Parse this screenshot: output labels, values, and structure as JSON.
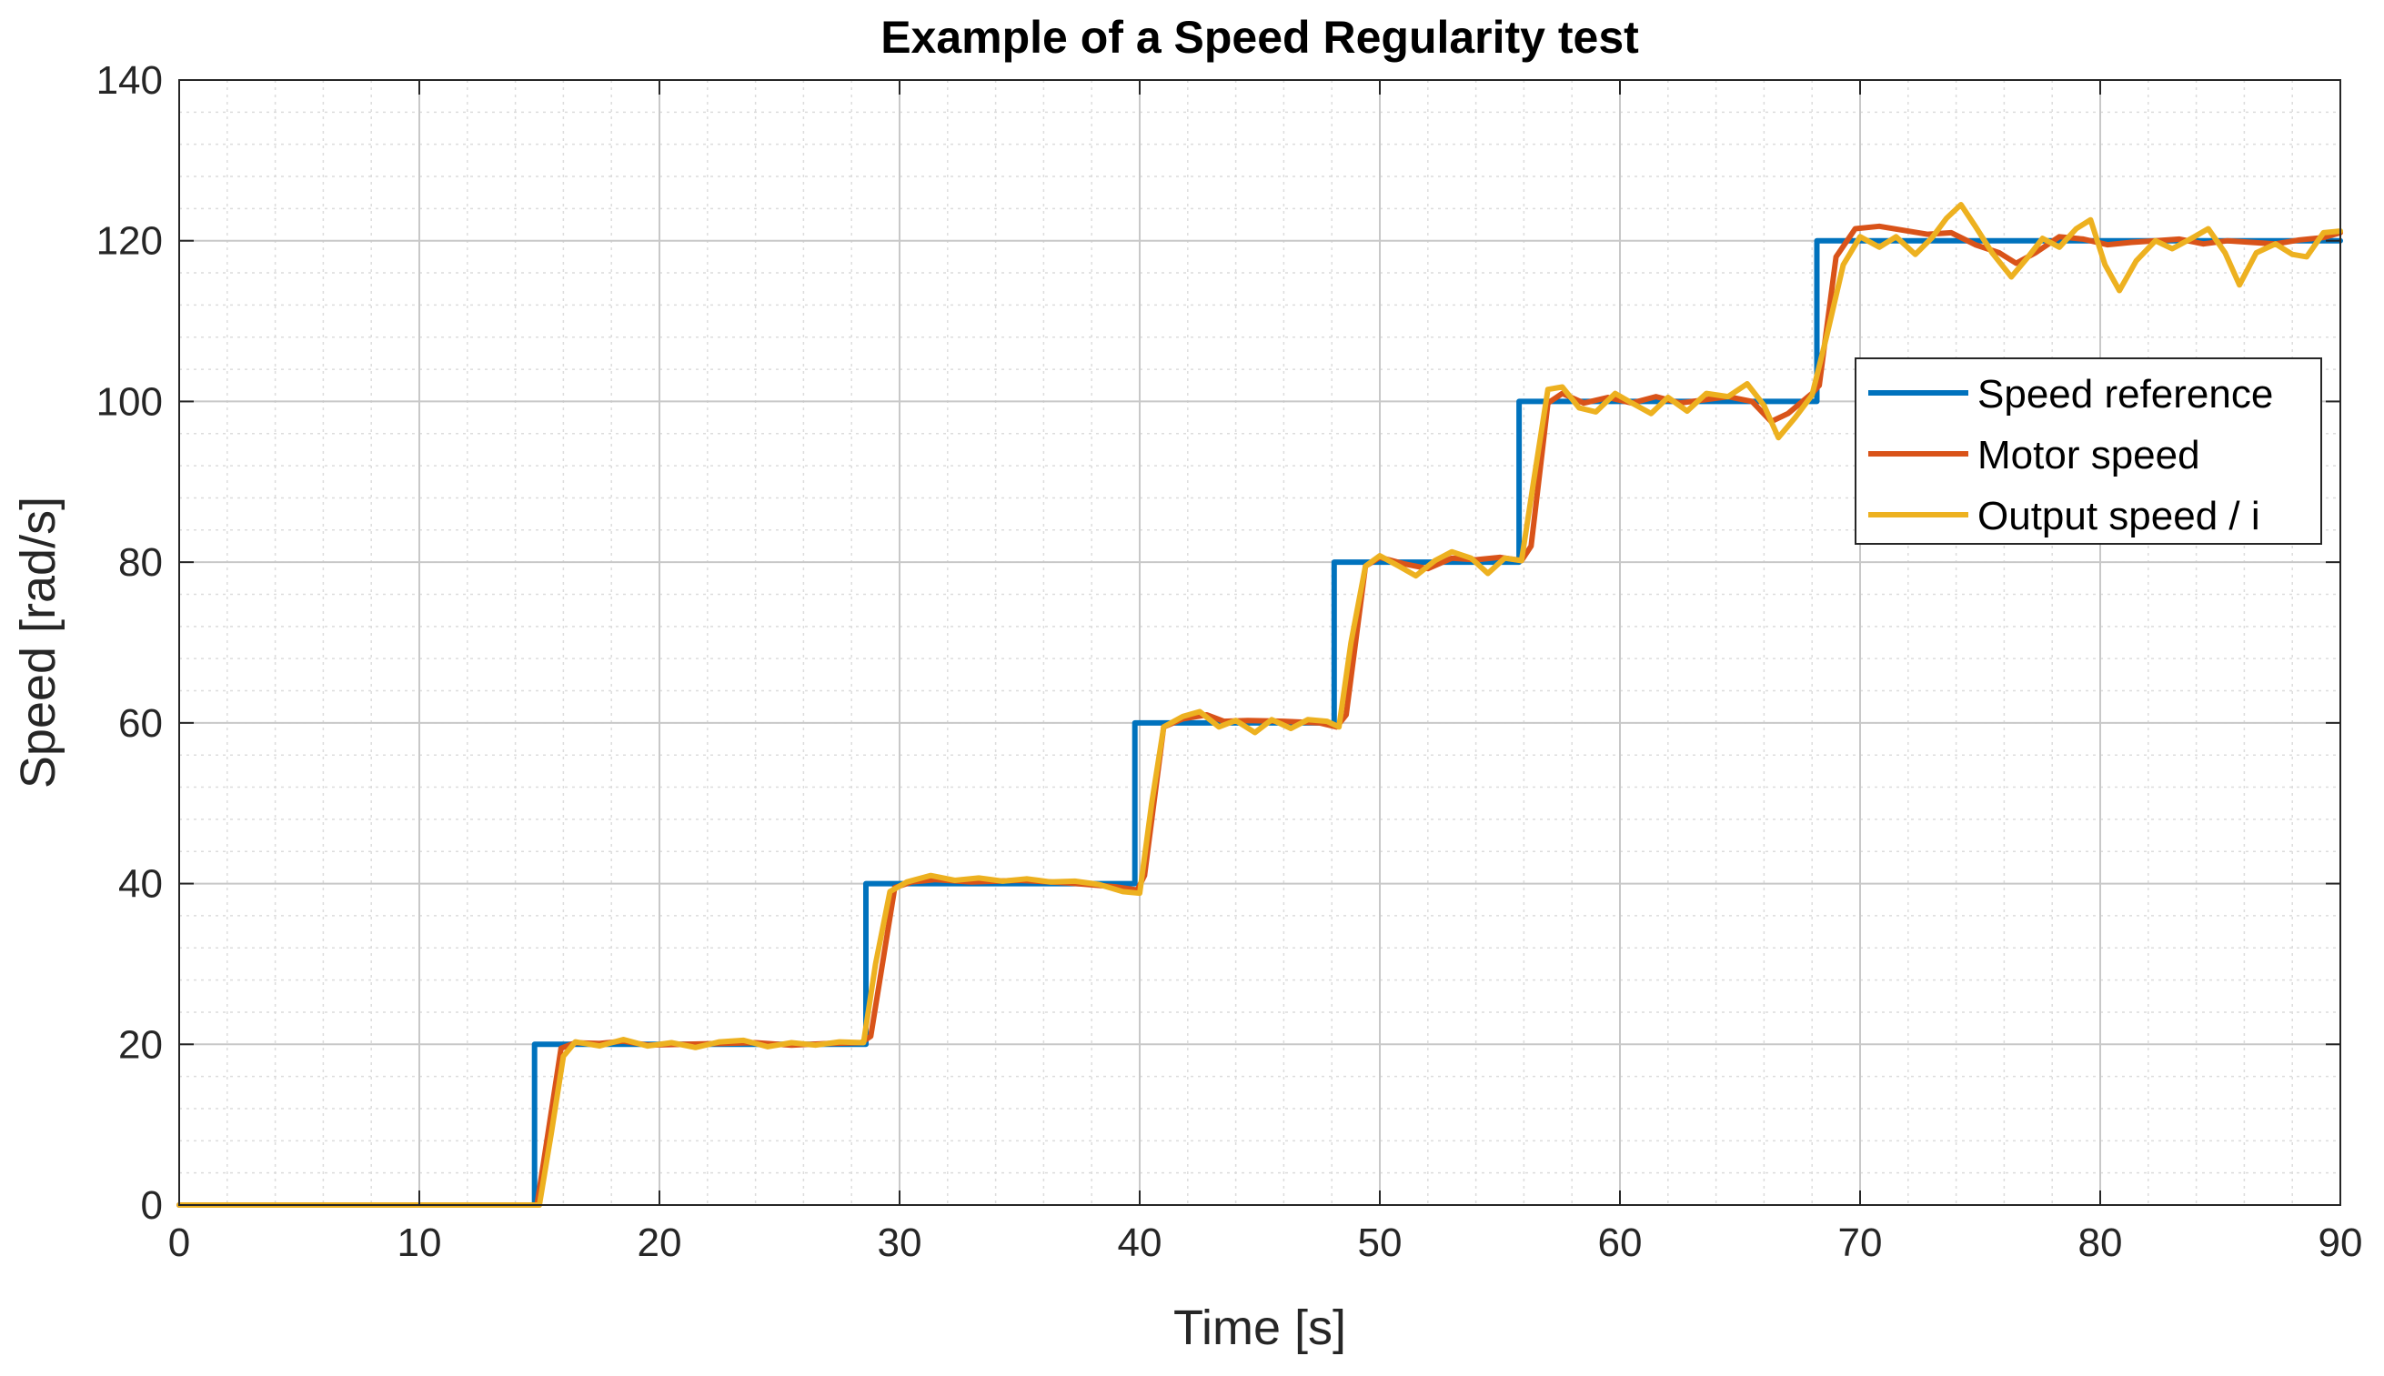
{
  "chart_data": {
    "type": "line",
    "title": "Example of a Speed Regularity test",
    "xlabel": "Time [s]",
    "ylabel": "Speed [rad/s]",
    "xlim": [
      0,
      90
    ],
    "ylim": [
      0,
      140
    ],
    "xticks": [
      0,
      10,
      20,
      30,
      40,
      50,
      60,
      70,
      80,
      90
    ],
    "yticks": [
      0,
      20,
      40,
      60,
      80,
      100,
      120,
      140
    ],
    "grid": true,
    "minor_grid": true,
    "legend_position": "right",
    "series": [
      {
        "name": "Speed reference",
        "color": "#0072BD",
        "points": [
          [
            0,
            0
          ],
          [
            14.8,
            0
          ],
          [
            14.8,
            20
          ],
          [
            28.6,
            20
          ],
          [
            28.6,
            40
          ],
          [
            39.8,
            40
          ],
          [
            39.8,
            60
          ],
          [
            48.1,
            60
          ],
          [
            48.1,
            80
          ],
          [
            55.8,
            80
          ],
          [
            55.8,
            100
          ],
          [
            68.2,
            100
          ],
          [
            68.2,
            120
          ],
          [
            90,
            120
          ]
        ]
      },
      {
        "name": "Motor speed",
        "color": "#D95319",
        "points": [
          [
            0,
            0
          ],
          [
            14.9,
            0
          ],
          [
            15.9,
            19.5
          ],
          [
            16.5,
            20.2
          ],
          [
            17.5,
            20.1
          ],
          [
            18.5,
            20.4
          ],
          [
            19.5,
            19.9
          ],
          [
            21,
            20
          ],
          [
            22.5,
            20.1
          ],
          [
            24,
            20.2
          ],
          [
            25.5,
            19.9
          ],
          [
            27,
            20.1
          ],
          [
            28.4,
            20.2
          ],
          [
            28.8,
            21
          ],
          [
            29.8,
            39.5
          ],
          [
            30.5,
            40.2
          ],
          [
            31.5,
            40.5
          ],
          [
            33,
            40.2
          ],
          [
            35,
            40.4
          ],
          [
            37,
            40.1
          ],
          [
            39,
            39.6
          ],
          [
            39.9,
            39.2
          ],
          [
            40.2,
            41
          ],
          [
            41,
            59.5
          ],
          [
            41.8,
            60.5
          ],
          [
            42.8,
            61
          ],
          [
            43.5,
            60.2
          ],
          [
            44.5,
            60.3
          ],
          [
            46,
            60.2
          ],
          [
            47.5,
            60
          ],
          [
            48.2,
            59.5
          ],
          [
            48.6,
            61
          ],
          [
            49.4,
            79.5
          ],
          [
            50,
            80.6
          ],
          [
            51,
            79.8
          ],
          [
            52,
            79.2
          ],
          [
            53,
            80.5
          ],
          [
            54,
            80.3
          ],
          [
            55,
            80.6
          ],
          [
            55.9,
            80.2
          ],
          [
            56.3,
            82
          ],
          [
            57,
            99.8
          ],
          [
            57.6,
            101
          ],
          [
            58.5,
            99.8
          ],
          [
            59.5,
            100.5
          ],
          [
            60.5,
            99.8
          ],
          [
            61.5,
            100.6
          ],
          [
            62.5,
            99.8
          ],
          [
            63.5,
            100.2
          ],
          [
            64.5,
            100.6
          ],
          [
            65.5,
            100
          ],
          [
            66.3,
            97.5
          ],
          [
            67,
            98.5
          ],
          [
            68,
            101
          ],
          [
            68.3,
            102
          ],
          [
            69,
            118
          ],
          [
            69.8,
            121.5
          ],
          [
            70.8,
            121.8
          ],
          [
            71.8,
            121.3
          ],
          [
            72.8,
            120.8
          ],
          [
            73.8,
            121
          ],
          [
            74.8,
            119.5
          ],
          [
            75.8,
            118.5
          ],
          [
            76.5,
            117.2
          ],
          [
            77.3,
            118.5
          ],
          [
            78.3,
            120.5
          ],
          [
            79.3,
            120.2
          ],
          [
            80.3,
            119.5
          ],
          [
            81.3,
            119.8
          ],
          [
            82.3,
            120
          ],
          [
            83.3,
            120.2
          ],
          [
            84.3,
            119.6
          ],
          [
            85.3,
            120
          ],
          [
            86.3,
            119.8
          ],
          [
            87.3,
            119.6
          ],
          [
            88.3,
            120.1
          ],
          [
            89.3,
            120.4
          ],
          [
            90,
            121
          ]
        ]
      },
      {
        "name": "Output speed / i",
        "color": "#EDB120",
        "points": [
          [
            0,
            0
          ],
          [
            15,
            0
          ],
          [
            15.5,
            9
          ],
          [
            16,
            18.5
          ],
          [
            16.5,
            20.3
          ],
          [
            17.5,
            19.8
          ],
          [
            18.5,
            20.6
          ],
          [
            19.5,
            19.8
          ],
          [
            20.5,
            20.2
          ],
          [
            21.5,
            19.6
          ],
          [
            22.5,
            20.3
          ],
          [
            23.5,
            20.5
          ],
          [
            24.5,
            19.7
          ],
          [
            25.5,
            20.2
          ],
          [
            26.5,
            19.9
          ],
          [
            27.5,
            20.3
          ],
          [
            28.5,
            20.2
          ],
          [
            29,
            30
          ],
          [
            29.6,
            39
          ],
          [
            30.3,
            40.2
          ],
          [
            31.3,
            41
          ],
          [
            32.3,
            40.4
          ],
          [
            33.3,
            40.7
          ],
          [
            34.3,
            40.3
          ],
          [
            35.3,
            40.6
          ],
          [
            36.3,
            40.2
          ],
          [
            37.3,
            40.3
          ],
          [
            38.3,
            39.9
          ],
          [
            39.3,
            39
          ],
          [
            40,
            38.8
          ],
          [
            40.5,
            50
          ],
          [
            41,
            59.5
          ],
          [
            41.8,
            60.8
          ],
          [
            42.5,
            61.4
          ],
          [
            43.3,
            59.5
          ],
          [
            44,
            60.3
          ],
          [
            44.8,
            58.8
          ],
          [
            45.5,
            60.4
          ],
          [
            46.3,
            59.3
          ],
          [
            47,
            60.4
          ],
          [
            47.8,
            60.2
          ],
          [
            48.3,
            59.5
          ],
          [
            48.8,
            70
          ],
          [
            49.4,
            79.5
          ],
          [
            50,
            80.8
          ],
          [
            50.8,
            79.5
          ],
          [
            51.5,
            78.3
          ],
          [
            52.3,
            80.2
          ],
          [
            53,
            81.3
          ],
          [
            53.8,
            80.5
          ],
          [
            54.5,
            78.6
          ],
          [
            55.2,
            80.5
          ],
          [
            55.9,
            80.2
          ],
          [
            56.4,
            90
          ],
          [
            57,
            101.5
          ],
          [
            57.6,
            101.8
          ],
          [
            58.3,
            99.2
          ],
          [
            59,
            98.7
          ],
          [
            59.8,
            101
          ],
          [
            60.5,
            99.8
          ],
          [
            61.3,
            98.5
          ],
          [
            62,
            100.5
          ],
          [
            62.8,
            98.8
          ],
          [
            63.6,
            101
          ],
          [
            64.5,
            100.6
          ],
          [
            65.3,
            102.2
          ],
          [
            66,
            99.5
          ],
          [
            66.6,
            95.5
          ],
          [
            67.3,
            98
          ],
          [
            68,
            100.8
          ],
          [
            68.6,
            108
          ],
          [
            69.3,
            117
          ],
          [
            70,
            120.5
          ],
          [
            70.8,
            119.2
          ],
          [
            71.5,
            120.5
          ],
          [
            72.3,
            118.3
          ],
          [
            73,
            120.4
          ],
          [
            73.6,
            122.8
          ],
          [
            74.2,
            124.5
          ],
          [
            74.8,
            121.8
          ],
          [
            75.5,
            118.5
          ],
          [
            76.3,
            115.5
          ],
          [
            77,
            118
          ],
          [
            77.6,
            120.3
          ],
          [
            78.3,
            119.2
          ],
          [
            79,
            121.5
          ],
          [
            79.6,
            122.6
          ],
          [
            80.2,
            117
          ],
          [
            80.8,
            113.8
          ],
          [
            81.5,
            117.5
          ],
          [
            82.3,
            120
          ],
          [
            83,
            119
          ],
          [
            83.8,
            120.3
          ],
          [
            84.5,
            121.5
          ],
          [
            85.2,
            118.5
          ],
          [
            85.8,
            114.5
          ],
          [
            86.5,
            118.5
          ],
          [
            87.3,
            119.6
          ],
          [
            88,
            118.3
          ],
          [
            88.6,
            118
          ],
          [
            89.3,
            121
          ],
          [
            90,
            121.2
          ]
        ]
      }
    ]
  }
}
